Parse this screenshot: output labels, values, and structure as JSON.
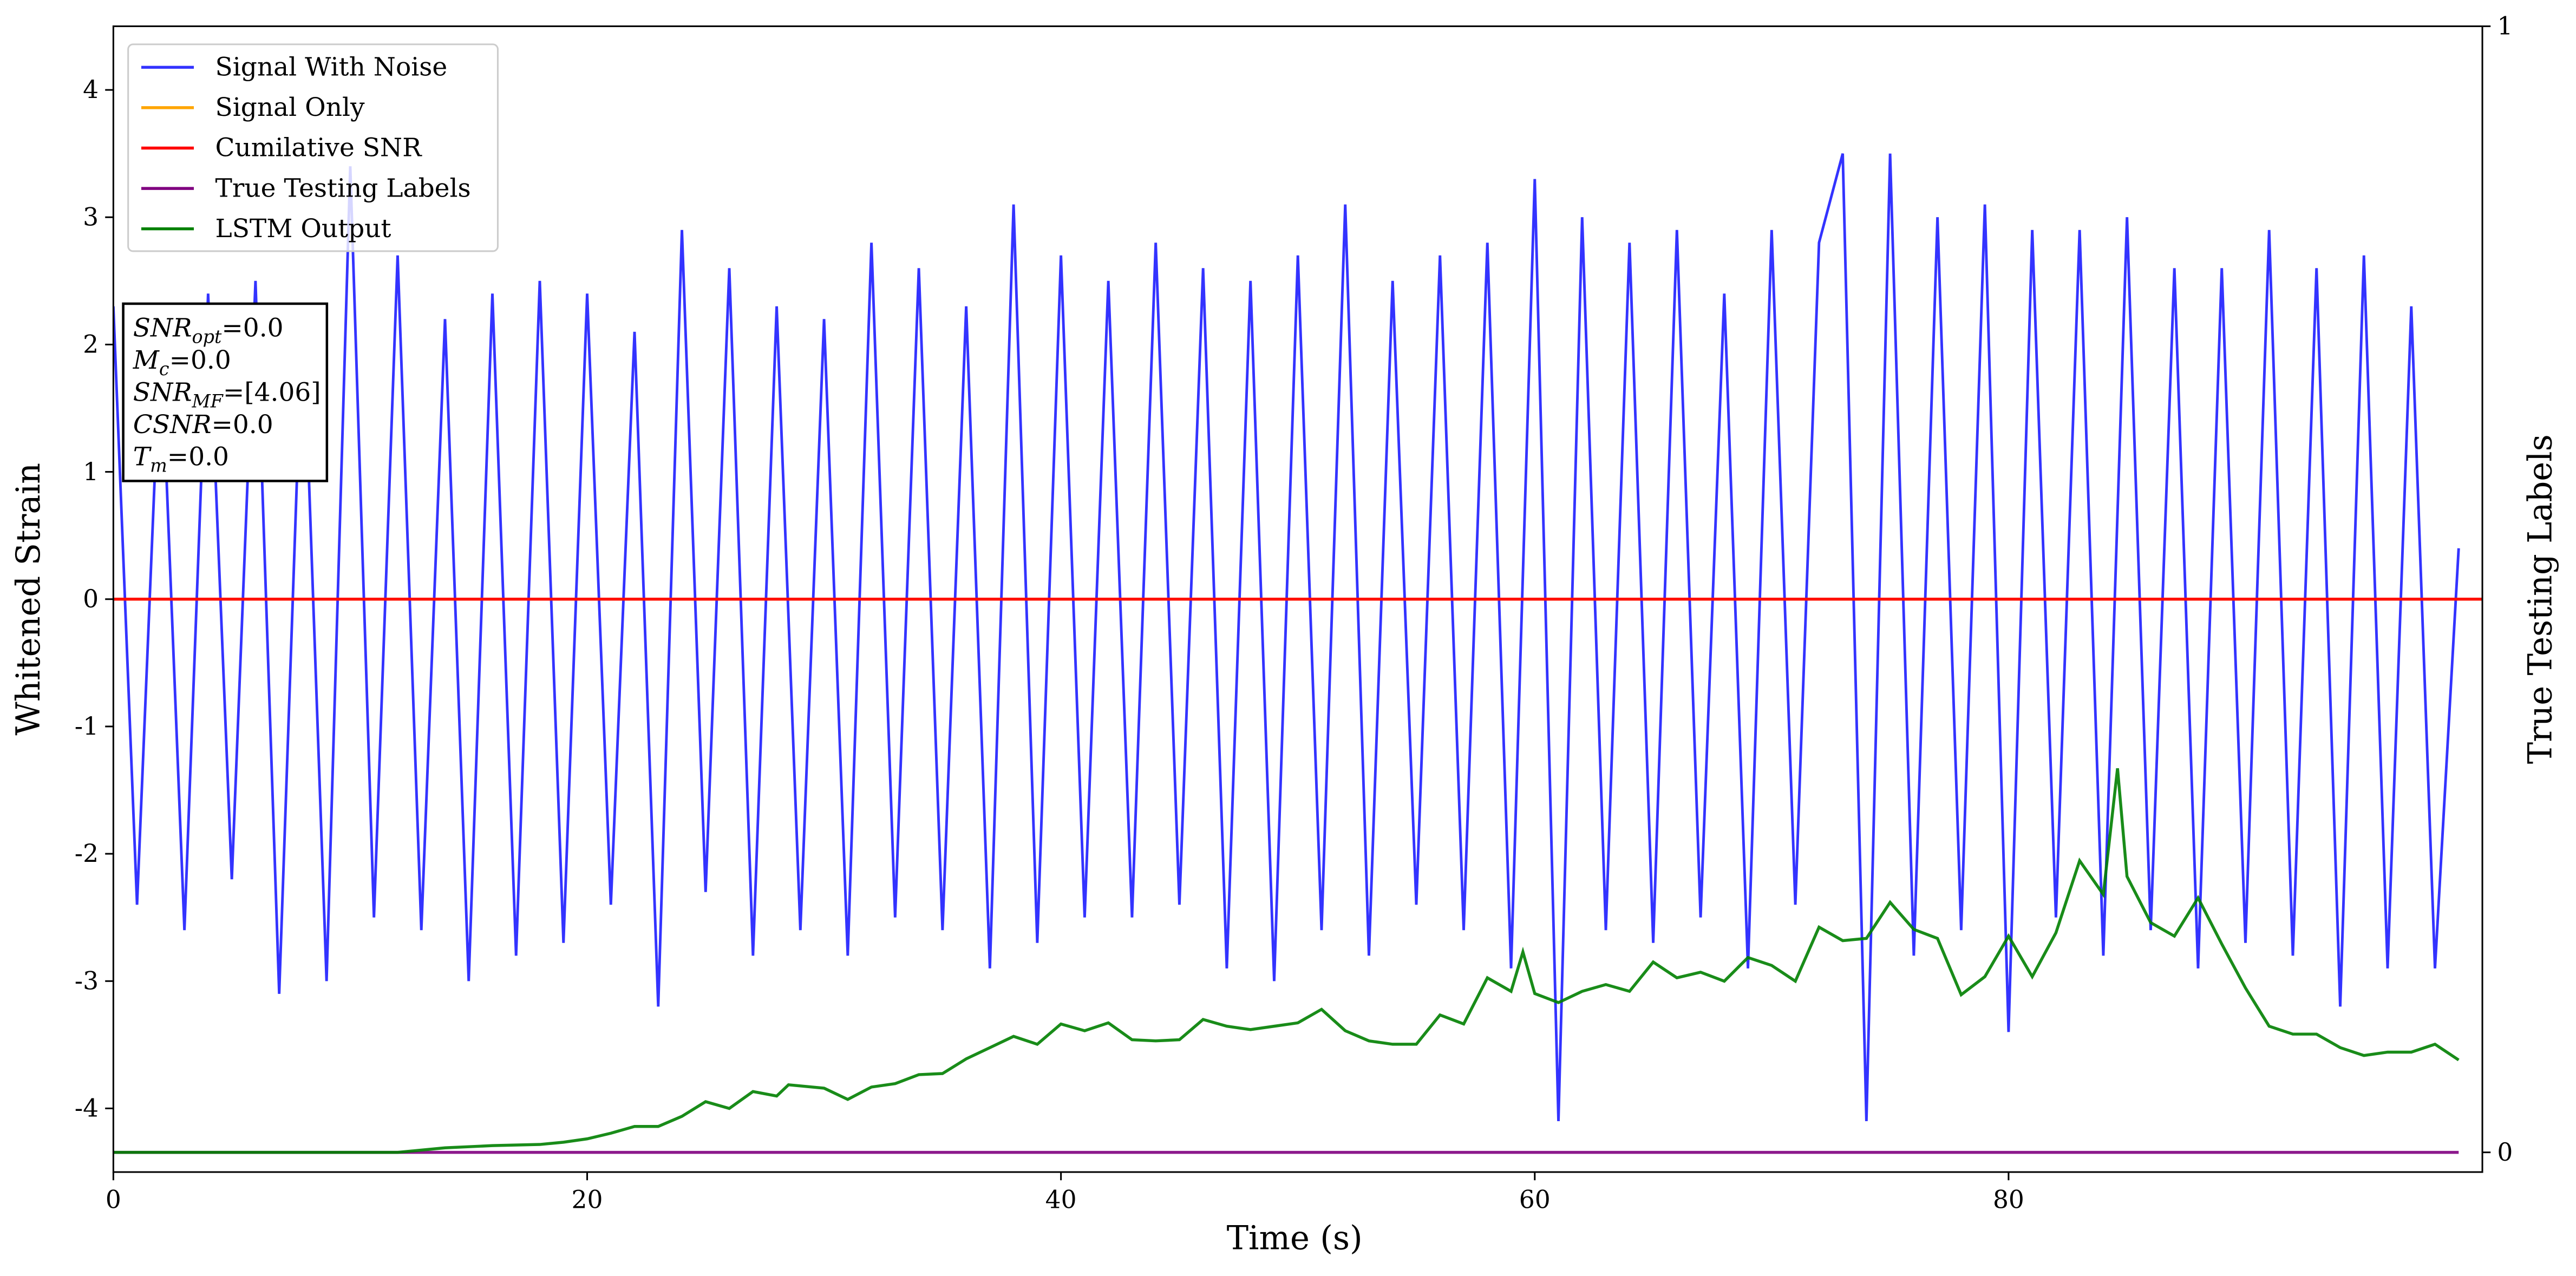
{
  "chart_data": {
    "type": "line",
    "xlabel": "Time (s)",
    "ylabel": "Whitened Strain",
    "y2label": "True Testing Labels",
    "xlim": [
      0,
      100
    ],
    "xticks": [
      0,
      20,
      40,
      60,
      80
    ],
    "ylim": [
      -4.5,
      4.5
    ],
    "yticks": [
      -4,
      -3,
      -2,
      -1,
      0,
      1,
      2,
      3,
      4
    ],
    "y2lim": [
      -0.0175,
      1
    ],
    "y2ticks": [
      0,
      1
    ],
    "legend": "upper left",
    "annotation": [
      {
        "base": "SNR",
        "sub": "opt",
        "rest": "=0.0"
      },
      {
        "base": "M",
        "sub": "c",
        "rest": "=0.0"
      },
      {
        "base": "SNR",
        "sub": "MF",
        "rest": "=[4.06]"
      },
      {
        "base": "CSNR",
        "rest": "=0.0"
      },
      {
        "base": "T",
        "sub": "m",
        "rest": "=0.0"
      }
    ],
    "series": [
      {
        "name": "Signal With Noise",
        "color": "#3333ff",
        "x": [
          0,
          1,
          2,
          3,
          4,
          5,
          6,
          7,
          8,
          9,
          10,
          11,
          12,
          13,
          14,
          15,
          16,
          17,
          18,
          19,
          20,
          21,
          22,
          23,
          24,
          25,
          26,
          27,
          28,
          29,
          30,
          31,
          32,
          33,
          34,
          35,
          36,
          37,
          38,
          39,
          40,
          41,
          42,
          43,
          44,
          45,
          46,
          47,
          48,
          49,
          50,
          51,
          52,
          53,
          54,
          55,
          56,
          57,
          58,
          59,
          60,
          61,
          62,
          63,
          64,
          65,
          66,
          67,
          68,
          69,
          70,
          71,
          72,
          73,
          74,
          75,
          76,
          77,
          78,
          79,
          80,
          81,
          82,
          83,
          84,
          85,
          86,
          87,
          88,
          89,
          90,
          91,
          92,
          93,
          94,
          95,
          96,
          97,
          98,
          99
        ],
        "values": [
          2.3,
          -2.4,
          2.1,
          -2.6,
          2.4,
          -2.2,
          2.5,
          -3.1,
          2.3,
          -3.0,
          3.4,
          -2.5,
          2.7,
          -2.6,
          2.2,
          -3.0,
          2.4,
          -2.8,
          2.5,
          -2.7,
          2.4,
          -2.4,
          2.1,
          -3.2,
          2.9,
          -2.3,
          2.6,
          -2.8,
          2.3,
          -2.6,
          2.2,
          -2.8,
          2.8,
          -2.5,
          2.6,
          -2.6,
          2.3,
          -2.9,
          3.1,
          -2.7,
          2.7,
          -2.5,
          2.5,
          -2.5,
          2.8,
          -2.4,
          2.6,
          -2.9,
          2.5,
          -3.0,
          2.7,
          -2.6,
          3.1,
          -2.8,
          2.5,
          -2.4,
          2.7,
          -2.6,
          2.8,
          -2.9,
          3.3,
          -4.1,
          3.0,
          -2.6,
          2.8,
          -2.7,
          2.9,
          -2.5,
          2.4,
          -2.9,
          2.9,
          -2.4,
          2.8,
          3.5,
          -4.1,
          3.5,
          -2.8,
          3.0,
          -2.6,
          3.1,
          -3.4,
          2.9,
          -2.5,
          2.9,
          -2.8,
          3.0,
          -2.6,
          2.6,
          -2.9,
          2.6,
          -2.7,
          2.9,
          -2.8,
          2.6,
          -3.2,
          2.7,
          -2.9,
          2.3,
          -2.9,
          0.4
        ]
      },
      {
        "name": "Signal Only",
        "color": "#ffa500",
        "x": [
          0,
          100
        ],
        "values": [
          0,
          0
        ]
      },
      {
        "name": "Cumilative SNR",
        "color": "#ff0000",
        "x": [
          0,
          100
        ],
        "values": [
          0,
          0
        ]
      },
      {
        "name": "True Testing Labels",
        "color": "#800080",
        "axis": "y2",
        "x": [
          0,
          99
        ],
        "values": [
          0,
          0
        ]
      },
      {
        "name": "LSTM Output",
        "color": "#008000",
        "axis": "y2",
        "x": [
          0,
          12,
          14,
          16,
          18,
          19,
          20,
          21,
          22,
          23,
          24,
          25,
          26,
          27,
          28,
          28.5,
          30,
          31,
          32,
          33,
          34,
          35,
          36,
          37,
          38,
          39,
          40,
          41,
          42,
          43,
          44,
          45,
          46,
          47,
          48,
          49,
          50,
          51,
          52,
          53,
          54,
          55,
          56,
          57,
          58,
          59,
          59.5,
          60,
          61,
          62,
          63,
          64,
          65,
          66,
          67,
          68,
          69,
          70,
          71,
          72,
          73,
          74,
          75,
          76,
          77,
          78,
          79,
          80,
          81,
          82,
          83,
          84,
          84.6,
          85,
          86,
          87,
          88,
          89,
          90,
          91,
          92,
          93,
          94,
          95,
          96,
          97,
          98,
          99
        ],
        "values": [
          0,
          0,
          0.004,
          0.006,
          0.007,
          0.009,
          0.012,
          0.017,
          0.023,
          0.023,
          0.032,
          0.045,
          0.039,
          0.054,
          0.05,
          0.06,
          0.057,
          0.047,
          0.058,
          0.061,
          0.069,
          0.07,
          0.083,
          0.093,
          0.103,
          0.096,
          0.114,
          0.108,
          0.115,
          0.1,
          0.099,
          0.1,
          0.118,
          0.112,
          0.109,
          0.112,
          0.115,
          0.127,
          0.108,
          0.099,
          0.096,
          0.096,
          0.122,
          0.114,
          0.155,
          0.143,
          0.178,
          0.141,
          0.133,
          0.143,
          0.149,
          0.143,
          0.169,
          0.155,
          0.16,
          0.152,
          0.173,
          0.166,
          0.152,
          0.2,
          0.188,
          0.19,
          0.222,
          0.198,
          0.19,
          0.14,
          0.156,
          0.192,
          0.156,
          0.195,
          0.259,
          0.229,
          0.341,
          0.245,
          0.204,
          0.192,
          0.226,
          0.185,
          0.146,
          0.112,
          0.105,
          0.105,
          0.093,
          0.086,
          0.089,
          0.089,
          0.096,
          0.082
        ]
      }
    ]
  }
}
